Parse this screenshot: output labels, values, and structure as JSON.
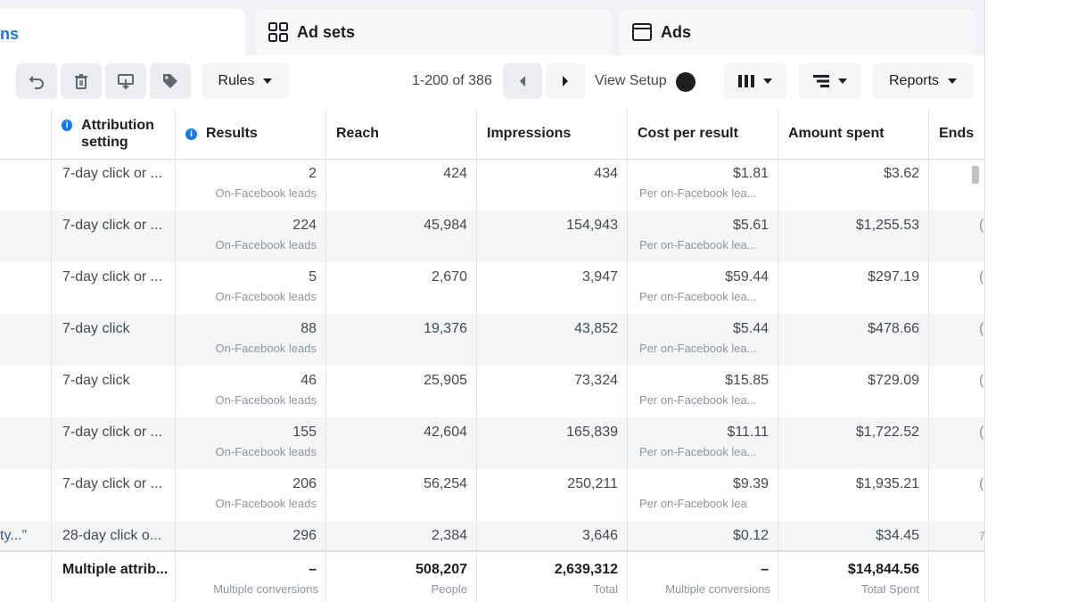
{
  "tabs": [
    {
      "label": "ns",
      "icon": "campaigns-icon",
      "active": true
    },
    {
      "label": "Ad sets",
      "icon": "grid-icon",
      "active": false
    },
    {
      "label": "Ads",
      "icon": "ad-window-icon",
      "active": false
    }
  ],
  "toolbar": {
    "rules_label": "Rules",
    "pager": "1-200 of 386",
    "view_setup_label": "View Setup",
    "reports_label": "Reports"
  },
  "columns": {
    "attribution": "Attribution setting",
    "results": "Results",
    "reach": "Reach",
    "impressions": "Impressions",
    "cost_per_result": "Cost per result",
    "amount_spent": "Amount spent",
    "ends": "Ends"
  },
  "rows": [
    {
      "name": "",
      "attribution": "7-day click or ...",
      "results": "2",
      "results_sub": "On-Facebook leads",
      "reach": "424",
      "impressions": "434",
      "cpr": "$1.81",
      "cpr_sub": "Per on-Facebook lea...",
      "spent": "$3.62",
      "ends": ""
    },
    {
      "name": "",
      "attribution": "7-day click or ...",
      "results": "224",
      "results_sub": "On-Facebook leads",
      "reach": "45,984",
      "impressions": "154,943",
      "cpr": "$5.61",
      "cpr_sub": "Per on-Facebook lea...",
      "spent": "$1,255.53",
      "ends": "("
    },
    {
      "name": "",
      "attribution": "7-day click or ...",
      "results": "5",
      "results_sub": "On-Facebook leads",
      "reach": "2,670",
      "impressions": "3,947",
      "cpr": "$59.44",
      "cpr_sub": "Per on-Facebook lea...",
      "spent": "$297.19",
      "ends": "("
    },
    {
      "name": "",
      "attribution": "7-day click",
      "results": "88",
      "results_sub": "On-Facebook leads",
      "reach": "19,376",
      "impressions": "43,852",
      "cpr": "$5.44",
      "cpr_sub": "Per on-Facebook lea...",
      "spent": "$478.66",
      "ends": "("
    },
    {
      "name": "",
      "attribution": "7-day click",
      "results": "46",
      "results_sub": "On-Facebook leads",
      "reach": "25,905",
      "impressions": "73,324",
      "cpr": "$15.85",
      "cpr_sub": "Per on-Facebook lea...",
      "spent": "$729.09",
      "ends": "("
    },
    {
      "name": "",
      "attribution": "7-day click or ...",
      "results": "155",
      "results_sub": "On-Facebook leads",
      "reach": "42,604",
      "impressions": "165,839",
      "cpr": "$11.11",
      "cpr_sub": "Per on-Facebook lea...",
      "spent": "$1,722.52",
      "ends": "("
    },
    {
      "name": "",
      "attribution": "7-day click or ...",
      "results": "206",
      "results_sub": "On-Facebook leads",
      "reach": "56,254",
      "impressions": "250,211",
      "cpr": "$9.39",
      "cpr_sub": "Per on-Facebook lea",
      "spent": "$1,935.21",
      "ends": "("
    },
    {
      "name": "ty...\"",
      "attribution": "28-day click o...",
      "results": "296",
      "results_sub": "",
      "reach": "2,384",
      "impressions": "3,646",
      "cpr": "$0.12",
      "cpr_sub": "",
      "spent": "$34.45",
      "ends": "7"
    }
  ],
  "totals": {
    "attribution": "Multiple attrib...",
    "results": "–",
    "results_sub": "Multiple conversions",
    "reach": "508,207",
    "reach_sub": "People",
    "impressions": "2,639,312",
    "impressions_sub": "Total",
    "cpr": "–",
    "cpr_sub": "Multiple conversions",
    "spent": "$14,844.56",
    "spent_sub": "Total Spent"
  },
  "colors": {
    "accent": "#1877f2",
    "text": "#1c1e21",
    "muted": "#8d949e"
  }
}
